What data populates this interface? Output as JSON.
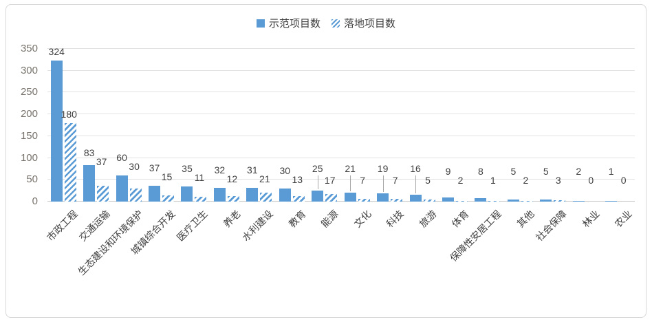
{
  "legend": [
    {
      "label": "示范项目数",
      "swatch": "solid"
    },
    {
      "label": "落地项目数",
      "swatch": "hatch"
    }
  ],
  "chart_data": {
    "type": "bar",
    "title": "",
    "xlabel": "",
    "ylabel": "",
    "ylim": [
      0,
      350
    ],
    "yticks": [
      0,
      50,
      100,
      150,
      200,
      250,
      300,
      350
    ],
    "grid": true,
    "legend_position": "top",
    "categories": [
      "市政工程",
      "交通运输",
      "生态建设和环境保护",
      "城镇综合开发",
      "医疗卫生",
      "养老",
      "水利建设",
      "教育",
      "能源",
      "文化",
      "科技",
      "旅游",
      "体育",
      "保障性安居工程",
      "其他",
      "社会保障",
      "林业",
      "农业"
    ],
    "series": [
      {
        "name": "示范项目数",
        "style": "solid",
        "values": [
          324,
          83,
          60,
          37,
          35,
          32,
          31,
          30,
          25,
          21,
          19,
          16,
          9,
          8,
          5,
          5,
          2,
          1
        ]
      },
      {
        "name": "落地项目数",
        "style": "hatch",
        "values": [
          180,
          37,
          30,
          15,
          11,
          12,
          21,
          13,
          17,
          7,
          7,
          5,
          2,
          1,
          2,
          3,
          0,
          0
        ]
      }
    ],
    "colors": {
      "bar": "#5B9BD5",
      "grid": "#E2E2E2",
      "axis_text": "#77726B",
      "value_text": "#3F3F3F",
      "category_text": "#404040"
    }
  }
}
